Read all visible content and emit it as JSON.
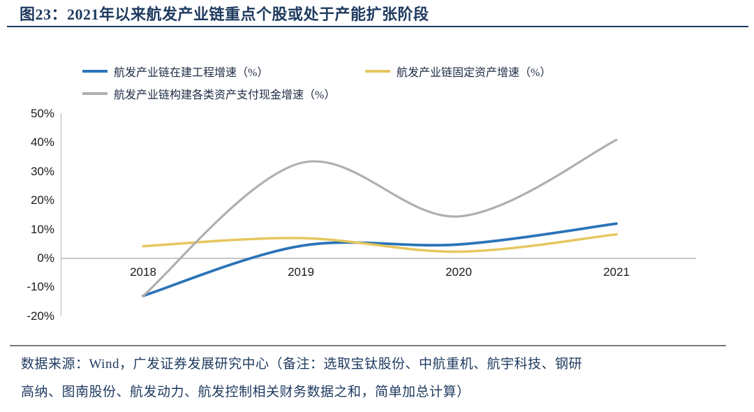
{
  "figure": {
    "title": "图23：2021年以来航发产业链重点个股或处于产能扩张阶段",
    "source_lines": [
      "数据来源：Wind，广发证券发展研究中心（备注：选取宝钛股份、中航重机、航宇科技、钢研",
      "高纳、图南股份、航发动力、航发控制相关财务数据之和，简单加总计算）"
    ]
  },
  "colors": {
    "accent_navy": "#1E3A5F",
    "line_blue": "#2B74B8",
    "line_yellow": "#E5C75E",
    "line_gray": "#AFAFAF",
    "axis_gray": "#BFBFBF",
    "divider_gray": "#7A7A7A",
    "tick_text": "#1A1A1A"
  },
  "chart_data": {
    "type": "line",
    "title": "2021年以来航发产业链重点个股或处于产能扩张阶段",
    "x": [
      "2018",
      "2019",
      "2020",
      "2021"
    ],
    "series": [
      {
        "name": "航发产业链在建工程增速（%）",
        "color_key": "line_blue",
        "values": [
          -13,
          4.3,
          4.8,
          12
        ]
      },
      {
        "name": "航发产业链固定资产增速（%）",
        "color_key": "line_yellow",
        "values": [
          4.2,
          7,
          2.3,
          8.3
        ]
      },
      {
        "name": "航发产业链构建各类资产支付现金增速（%）",
        "color_key": "line_gray",
        "values": [
          -13,
          33,
          14.5,
          41
        ]
      }
    ],
    "ylim": [
      -20,
      50
    ],
    "ytick_step": 10,
    "ytick_labels": [
      "50%",
      "40%",
      "30%",
      "20%",
      "10%",
      "0%",
      "-10%",
      "-20%"
    ],
    "xlabel": "",
    "ylabel": "",
    "grid": false,
    "legend_position": "top",
    "smooth": true,
    "source": "数据来源：Wind，广发证券发展研究中心"
  }
}
